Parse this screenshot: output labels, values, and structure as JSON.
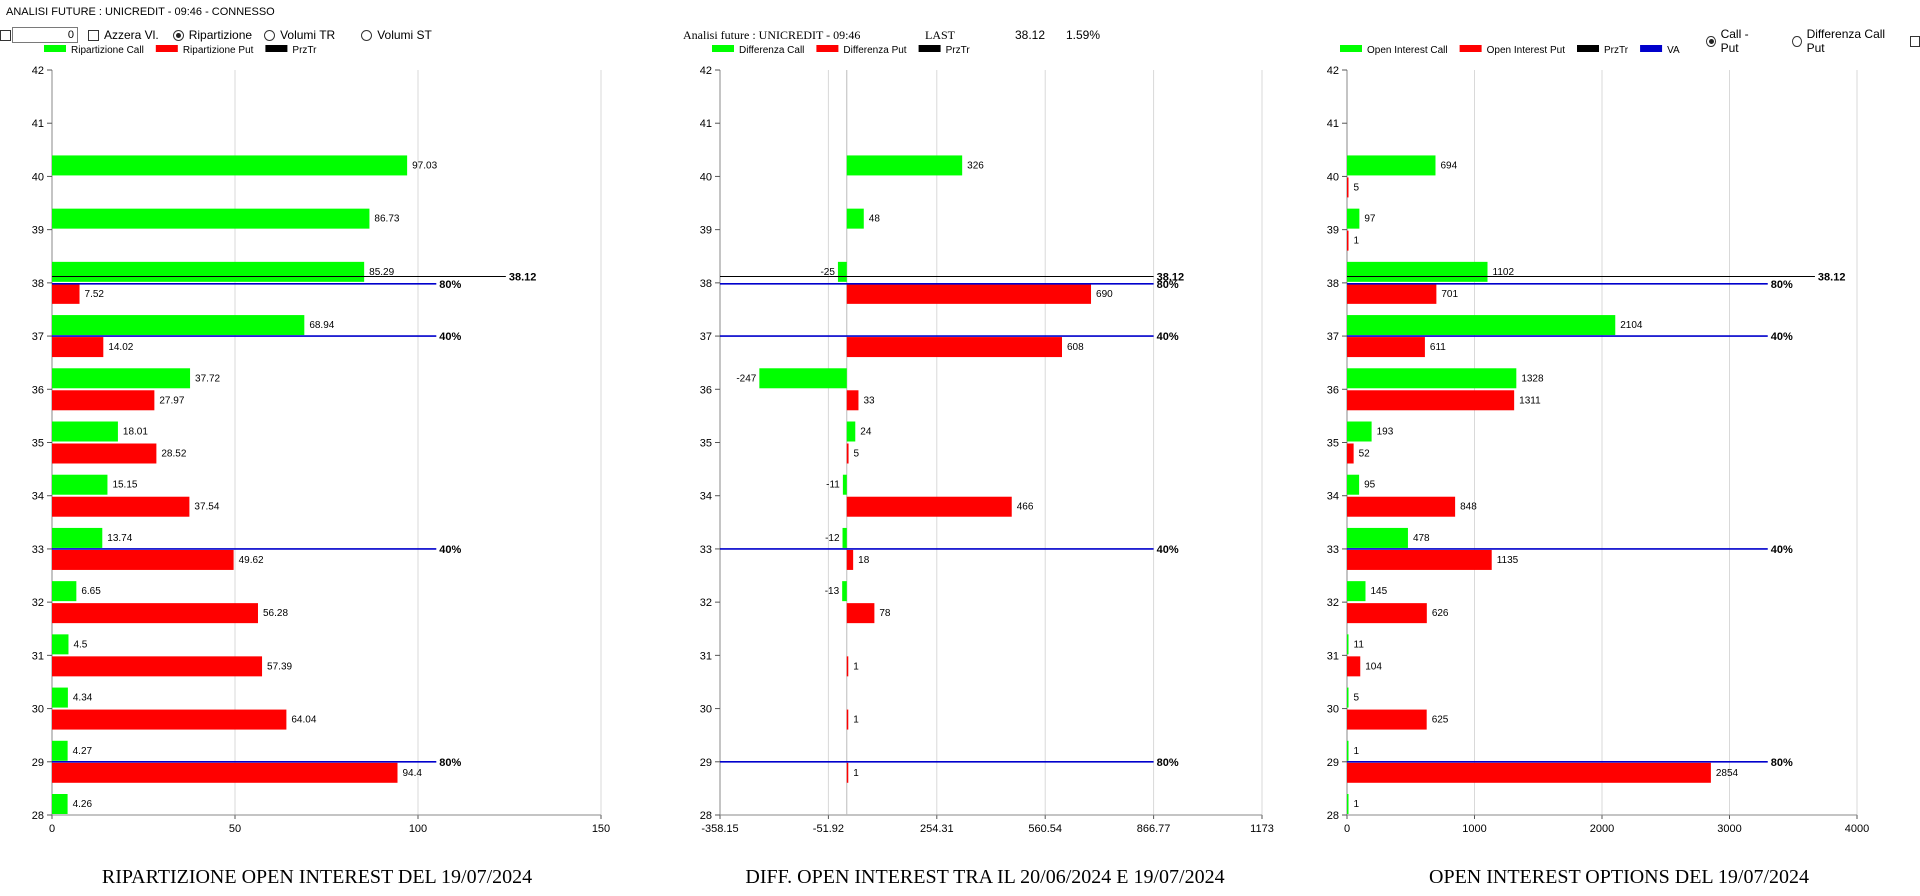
{
  "app_title": "ANALISI FUTURE : UNICREDIT - 09:46 - CONNESSO",
  "controls": {
    "zero_value": "0",
    "azzera_label": "Azzera Vl.",
    "mode_options": [
      "Ripartizione",
      "Volumi TR",
      "Volumi ST"
    ],
    "mode_selected": "Ripartizione",
    "right_options": [
      "Call - Put",
      "Differenza Call Put"
    ],
    "right_selected": "Call - Put"
  },
  "center_header": {
    "title": "Analisi future : UNICREDIT - 09:46",
    "last_label": "LAST",
    "last_value": "38.12",
    "change": "1.59%"
  },
  "colors": {
    "call": "#00ff00",
    "put": "#ff0000",
    "prztr": "#000000",
    "va": "#0000cc",
    "grid": "#d9d9d9"
  },
  "chart_data": [
    {
      "type": "bar",
      "orientation": "horizontal",
      "title": "RIPARTIZIONE OPEN INTEREST DEL 19/07/2024",
      "legend": [
        "Ripartizione Call",
        "Ripartizione Put",
        "PrzTr"
      ],
      "strikes": [
        28,
        29,
        30,
        31,
        32,
        33,
        34,
        35,
        36,
        37,
        38,
        39,
        40,
        41,
        42
      ],
      "series": [
        {
          "name": "Ripartizione Call",
          "values": [
            4.26,
            4.27,
            4.34,
            4.5,
            6.65,
            13.74,
            15.15,
            18.01,
            37.72,
            68.94,
            85.29,
            86.73,
            97.03,
            null,
            null
          ],
          "labels": [
            "4.26",
            "4.27",
            "4.34",
            "4.5",
            "6.65",
            "13.74",
            "15.15",
            "18.01",
            "37.72",
            "68.94",
            "85.29",
            "86.73",
            "97.03",
            null,
            null
          ]
        },
        {
          "name": "Ripartizione Put",
          "values": [
            null,
            94.4,
            64.04,
            57.39,
            56.28,
            49.62,
            37.54,
            28.52,
            27.97,
            14.02,
            7.52,
            null,
            null,
            null,
            null
          ],
          "labels": [
            null,
            "94.4",
            "64.04",
            "57.39",
            "56.28",
            "49.62",
            "37.54",
            "28.52",
            "27.97",
            "14.02",
            "7.52",
            null,
            null,
            null,
            null
          ]
        }
      ],
      "xticks": [
        0,
        50,
        100,
        150
      ],
      "xtick_labels": [
        "0",
        "50",
        "100",
        "150"
      ],
      "xlim": [
        0,
        150
      ],
      "ylim": [
        28,
        42
      ],
      "prztr": {
        "value": 38.12,
        "label": "38.12",
        "x_end": 124
      },
      "va_lines": [
        {
          "strike": 38,
          "label": "80%",
          "x_end": 105
        },
        {
          "strike": 37,
          "label": "40%",
          "x_end": 105
        },
        {
          "strike": 33,
          "label": "40%",
          "x_end": 105
        },
        {
          "strike": 29,
          "label": "80%",
          "x_end": 105
        }
      ]
    },
    {
      "type": "bar",
      "orientation": "horizontal",
      "title": "DIFF. OPEN INTEREST TRA IL 20/06/2024 E 19/07/2024",
      "legend": [
        "Differenza Call",
        "Differenza Put",
        "PrzTr"
      ],
      "strikes": [
        28,
        29,
        30,
        31,
        32,
        33,
        34,
        35,
        36,
        37,
        38,
        39,
        40,
        41,
        42
      ],
      "series": [
        {
          "name": "Differenza Call",
          "values": [
            null,
            null,
            null,
            null,
            -13,
            -12,
            -11,
            24,
            -247,
            null,
            -25,
            48,
            326,
            null,
            null
          ],
          "labels": [
            null,
            null,
            null,
            null,
            "-13",
            "-12",
            "-11",
            "24",
            "-247",
            null,
            "-25",
            "48",
            "326",
            null,
            null
          ]
        },
        {
          "name": "Differenza Put",
          "values": [
            null,
            1,
            1,
            1,
            78,
            18,
            466,
            5,
            33,
            608,
            690,
            null,
            null,
            null,
            null
          ],
          "labels": [
            null,
            "1",
            "1",
            "1",
            "78",
            "18",
            "466",
            "5",
            "33",
            "608",
            "690",
            null,
            null,
            null,
            null
          ]
        }
      ],
      "xticks": [
        -358.15,
        -51.92,
        254.31,
        560.54,
        866.77,
        1173
      ],
      "xtick_labels": [
        "-358.15",
        "-51.92",
        "254.31",
        "560.54",
        "866.77",
        "1173"
      ],
      "xlim": [
        -358.15,
        1173
      ],
      "ylim": [
        28,
        42
      ],
      "prztr": {
        "value": 38.12,
        "label": "38.12",
        "x_start": -358.15,
        "x_end": 866.77
      },
      "va_lines": [
        {
          "strike": 38,
          "label": "80%",
          "x_end": 866.77
        },
        {
          "strike": 37,
          "label": "40%",
          "x_end": 866.77
        },
        {
          "strike": 33,
          "label": "40%",
          "x_end": 866.77
        },
        {
          "strike": 29,
          "label": "80%",
          "x_end": 866.77
        }
      ]
    },
    {
      "type": "bar",
      "orientation": "horizontal",
      "title": "OPEN INTEREST OPTIONS DEL 19/07/2024",
      "legend": [
        "Open Interest Call",
        "Open Interest Put",
        "PrzTr",
        "VA"
      ],
      "strikes": [
        28,
        29,
        30,
        31,
        32,
        33,
        34,
        35,
        36,
        37,
        38,
        39,
        40,
        41,
        42
      ],
      "series": [
        {
          "name": "Open Interest Call",
          "values": [
            1,
            1,
            5,
            11,
            145,
            478,
            95,
            193,
            1328,
            2104,
            1102,
            97,
            694,
            null,
            null
          ],
          "labels": [
            "1",
            "1",
            "5",
            "11",
            "145",
            "478",
            "95",
            "193",
            "1328",
            "2104",
            "1102",
            "97",
            "694",
            null,
            null
          ]
        },
        {
          "name": "Open Interest Put",
          "values": [
            null,
            2854,
            625,
            104,
            626,
            1135,
            848,
            52,
            1311,
            611,
            701,
            1,
            5,
            null,
            null
          ],
          "labels": [
            null,
            "2854",
            "625",
            "104",
            "626",
            "1135",
            "848",
            "52",
            "1311",
            "611",
            "701",
            "1",
            "5",
            null,
            null
          ]
        }
      ],
      "xticks": [
        0,
        1000,
        2000,
        3000,
        4000
      ],
      "xtick_labels": [
        "0",
        "1000",
        "2000",
        "3000",
        "4000"
      ],
      "xlim": [
        0,
        4000
      ],
      "ylim": [
        28,
        42
      ],
      "prztr": {
        "value": 38.12,
        "label": "38.12",
        "x_end": 3670
      },
      "va_lines": [
        {
          "strike": 38,
          "label": "80%",
          "x_end": 3300
        },
        {
          "strike": 37,
          "label": "40%",
          "x_end": 3300
        },
        {
          "strike": 33,
          "label": "40%",
          "x_end": 3300
        },
        {
          "strike": 29,
          "label": "80%",
          "x_end": 3300
        }
      ]
    }
  ]
}
